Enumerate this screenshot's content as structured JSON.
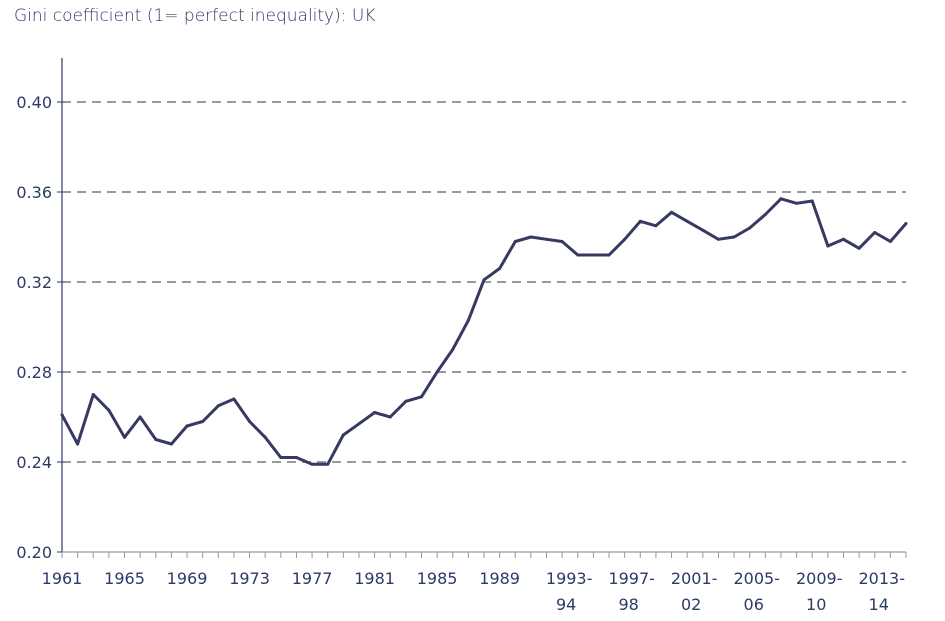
{
  "chart_data": {
    "type": "line",
    "title": "Gini coefficient (1= perfect inequality): UK",
    "xlabel": "",
    "ylabel": "",
    "ylim": [
      0.2,
      0.42
    ],
    "yticks": [
      "0.20",
      "0.24",
      "0.28",
      "0.32",
      "0.36",
      "0.40"
    ],
    "ytick_values": [
      0.2,
      0.24,
      0.28,
      0.32,
      0.36,
      0.4
    ],
    "grid": "horizontal dashed",
    "xtick_labels": [
      {
        "index": 0,
        "lines": [
          "1961"
        ]
      },
      {
        "index": 4,
        "lines": [
          "1965"
        ]
      },
      {
        "index": 8,
        "lines": [
          "1969"
        ]
      },
      {
        "index": 12,
        "lines": [
          "1973"
        ]
      },
      {
        "index": 16,
        "lines": [
          "1977"
        ]
      },
      {
        "index": 20,
        "lines": [
          "1981"
        ]
      },
      {
        "index": 24,
        "lines": [
          "1985"
        ]
      },
      {
        "index": 28,
        "lines": [
          "1989"
        ]
      },
      {
        "index": 32,
        "lines": [
          "1993-",
          "94"
        ]
      },
      {
        "index": 36,
        "lines": [
          "1997-",
          "98"
        ]
      },
      {
        "index": 40,
        "lines": [
          "2001-",
          "02"
        ]
      },
      {
        "index": 44,
        "lines": [
          "2005-",
          "06"
        ]
      },
      {
        "index": 48,
        "lines": [
          "2009-",
          "10"
        ]
      },
      {
        "index": 52,
        "lines": [
          "2013-",
          "14"
        ]
      }
    ],
    "series": [
      {
        "name": "Gini coefficient UK",
        "color": "#363a63",
        "values": [
          0.261,
          0.248,
          0.27,
          0.263,
          0.251,
          0.26,
          0.25,
          0.248,
          0.256,
          0.258,
          0.265,
          0.268,
          0.258,
          0.251,
          0.242,
          0.242,
          0.239,
          0.239,
          0.252,
          0.257,
          0.262,
          0.26,
          0.267,
          0.269,
          0.28,
          0.29,
          0.303,
          0.321,
          0.326,
          0.338,
          0.34,
          0.339,
          0.338,
          0.332,
          0.332,
          0.332,
          0.339,
          0.347,
          0.345,
          0.351,
          0.347,
          0.343,
          0.339,
          0.34,
          0.344,
          0.35,
          0.357,
          0.355,
          0.356,
          0.336,
          0.339,
          0.335,
          0.342,
          0.338,
          0.346
        ]
      }
    ]
  }
}
